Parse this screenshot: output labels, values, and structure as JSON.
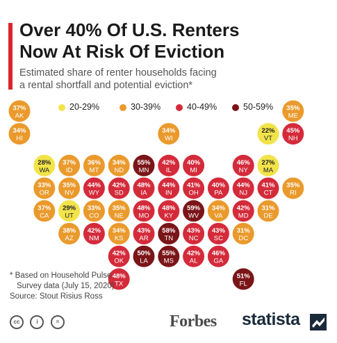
{
  "header": {
    "title_line1": "Over 40% Of U.S. Renters",
    "title_line2": "Now At Risk Of Eviction",
    "subtitle_line1": "Estimated share of renter households facing",
    "subtitle_line2": "a rental shortfall and potential eviction*"
  },
  "legend": [
    {
      "label": "20-29%",
      "color": "#f2e34a"
    },
    {
      "label": "30-39%",
      "color": "#ea9a2c"
    },
    {
      "label": "40-49%",
      "color": "#d42b3b"
    },
    {
      "label": "50-59%",
      "color": "#7a1518"
    }
  ],
  "footnote": {
    "line1": "* Based on Household Pulse",
    "line2": "Survey data (July 15, 2020)",
    "line3": "Source: Stout Risius Ross"
  },
  "branding": {
    "forbes": "Forbes",
    "statista": "statista",
    "cc_icons": [
      "creative-commons-icon",
      "attribution-icon",
      "no-derivatives-icon"
    ]
  },
  "chart_data": {
    "type": "tile-map",
    "title": "Over 40% Of U.S. Renters Now At Risk Of Eviction",
    "subtitle": "Estimated share of renter households facing a rental shortfall and potential eviction*",
    "unit": "%",
    "categories": [
      "20-29%",
      "30-39%",
      "40-49%",
      "50-59%"
    ],
    "states": [
      {
        "code": "AK",
        "value": 37,
        "row": 0,
        "col": 0
      },
      {
        "code": "ME",
        "value": 35,
        "row": 0,
        "col": 11
      },
      {
        "code": "HI",
        "value": 34,
        "row": 1,
        "col": 0
      },
      {
        "code": "WI",
        "value": 34,
        "row": 1,
        "col": 6
      },
      {
        "code": "VT",
        "value": 22,
        "row": 1,
        "col": 10
      },
      {
        "code": "NH",
        "value": 45,
        "row": 1,
        "col": 11
      },
      {
        "code": "WA",
        "value": 28,
        "row": 2,
        "col": 1
      },
      {
        "code": "ID",
        "value": 37,
        "row": 2,
        "col": 2
      },
      {
        "code": "MT",
        "value": 36,
        "row": 2,
        "col": 3
      },
      {
        "code": "ND",
        "value": 34,
        "row": 2,
        "col": 4
      },
      {
        "code": "MN",
        "value": 55,
        "row": 2,
        "col": 5
      },
      {
        "code": "IL",
        "value": 42,
        "row": 2,
        "col": 6
      },
      {
        "code": "MI",
        "value": 40,
        "row": 2,
        "col": 7
      },
      {
        "code": "NY",
        "value": 46,
        "row": 2,
        "col": 9
      },
      {
        "code": "MA",
        "value": 27,
        "row": 2,
        "col": 10
      },
      {
        "code": "OR",
        "value": 33,
        "row": 3,
        "col": 1
      },
      {
        "code": "NV",
        "value": 35,
        "row": 3,
        "col": 2
      },
      {
        "code": "WY",
        "value": 44,
        "row": 3,
        "col": 3
      },
      {
        "code": "SD",
        "value": 42,
        "row": 3,
        "col": 4
      },
      {
        "code": "IA",
        "value": 48,
        "row": 3,
        "col": 5
      },
      {
        "code": "IN",
        "value": 44,
        "row": 3,
        "col": 6
      },
      {
        "code": "OH",
        "value": 41,
        "row": 3,
        "col": 7
      },
      {
        "code": "PA",
        "value": 40,
        "row": 3,
        "col": 8
      },
      {
        "code": "NJ",
        "value": 44,
        "row": 3,
        "col": 9
      },
      {
        "code": "CT",
        "value": 41,
        "row": 3,
        "col": 10
      },
      {
        "code": "RI",
        "value": 35,
        "row": 3,
        "col": 11
      },
      {
        "code": "CA",
        "value": 37,
        "row": 4,
        "col": 1
      },
      {
        "code": "UT",
        "value": 29,
        "row": 4,
        "col": 2
      },
      {
        "code": "CO",
        "value": 33,
        "row": 4,
        "col": 3
      },
      {
        "code": "NE",
        "value": 35,
        "row": 4,
        "col": 4
      },
      {
        "code": "MO",
        "value": 48,
        "row": 4,
        "col": 5
      },
      {
        "code": "KY",
        "value": 48,
        "row": 4,
        "col": 6
      },
      {
        "code": "WV",
        "value": 59,
        "row": 4,
        "col": 7
      },
      {
        "code": "VA",
        "value": 34,
        "row": 4,
        "col": 8
      },
      {
        "code": "MD",
        "value": 42,
        "row": 4,
        "col": 9
      },
      {
        "code": "DE",
        "value": 31,
        "row": 4,
        "col": 10
      },
      {
        "code": "AZ",
        "value": 38,
        "row": 5,
        "col": 2
      },
      {
        "code": "NM",
        "value": 42,
        "row": 5,
        "col": 3
      },
      {
        "code": "KS",
        "value": 34,
        "row": 5,
        "col": 4
      },
      {
        "code": "AR",
        "value": 43,
        "row": 5,
        "col": 5
      },
      {
        "code": "TN",
        "value": 58,
        "row": 5,
        "col": 6
      },
      {
        "code": "NC",
        "value": 43,
        "row": 5,
        "col": 7
      },
      {
        "code": "SC",
        "value": 43,
        "row": 5,
        "col": 8
      },
      {
        "code": "DC",
        "value": 31,
        "row": 5,
        "col": 9
      },
      {
        "code": "OK",
        "value": 42,
        "row": 6,
        "col": 4
      },
      {
        "code": "LA",
        "value": 50,
        "row": 6,
        "col": 5
      },
      {
        "code": "MS",
        "value": 55,
        "row": 6,
        "col": 6
      },
      {
        "code": "AL",
        "value": 42,
        "row": 6,
        "col": 7
      },
      {
        "code": "GA",
        "value": 46,
        "row": 6,
        "col": 8
      },
      {
        "code": "TX",
        "value": 48,
        "row": 7,
        "col": 4
      },
      {
        "code": "FL",
        "value": 51,
        "row": 7,
        "col": 9
      }
    ]
  }
}
